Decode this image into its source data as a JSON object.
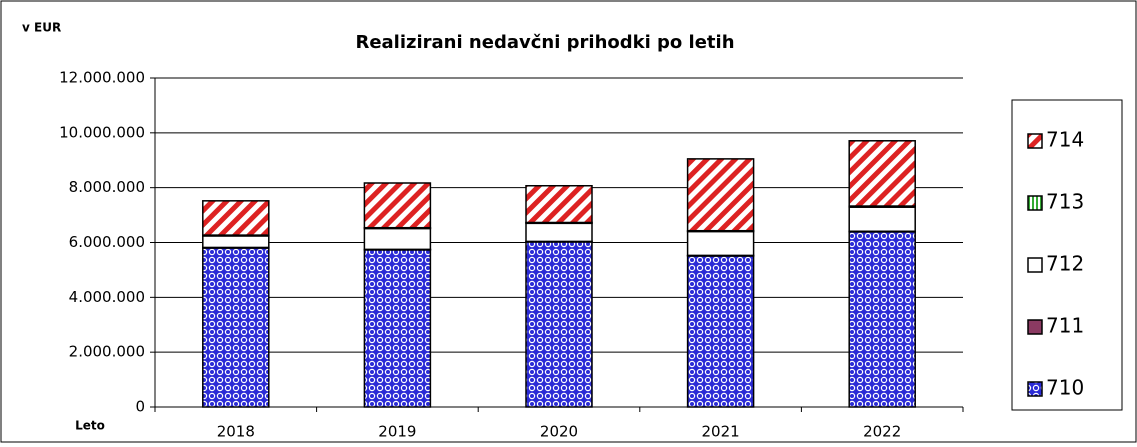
{
  "chart_data": {
    "type": "stacked_bar",
    "title": "Realizirani nedavčni prihodki po letih",
    "ylabel": "v EUR",
    "xlabel": "Leto",
    "categories": [
      "2018",
      "2019",
      "2020",
      "2021",
      "2022"
    ],
    "series": [
      {
        "name": "710",
        "color": "#2b2bd6",
        "pattern": "dots",
        "values": [
          5800000,
          5730000,
          6020000,
          5510000,
          6390000
        ]
      },
      {
        "name": "711",
        "color": "#8b3a62",
        "pattern": "solid",
        "values": [
          20000,
          20000,
          20000,
          20000,
          20000
        ]
      },
      {
        "name": "712",
        "color": "#ffffff",
        "pattern": "solid",
        "values": [
          420000,
          760000,
          660000,
          870000,
          880000
        ]
      },
      {
        "name": "713",
        "color": "#33aa33",
        "pattern": "vstripes",
        "values": [
          30000,
          30000,
          30000,
          30000,
          40000
        ]
      },
      {
        "name": "714",
        "color": "#dd2222",
        "pattern": "stripes",
        "values": [
          1250000,
          1630000,
          1340000,
          2620000,
          2380000
        ]
      }
    ],
    "ylim": [
      0,
      12000000
    ],
    "yticks": [
      0,
      {
        "value": 2000000,
        "label": "2.000.000"
      },
      {
        "value": 4000000,
        "label": "4.000.000"
      },
      {
        "value": 6000000,
        "label": "6.000.000"
      },
      {
        "value": 8000000,
        "label": "8.000.000"
      },
      {
        "value": 10000000,
        "label": "10.000.000"
      },
      {
        "value": 12000000,
        "label": "12.000.000"
      }
    ],
    "grid": true,
    "legend": "right"
  }
}
